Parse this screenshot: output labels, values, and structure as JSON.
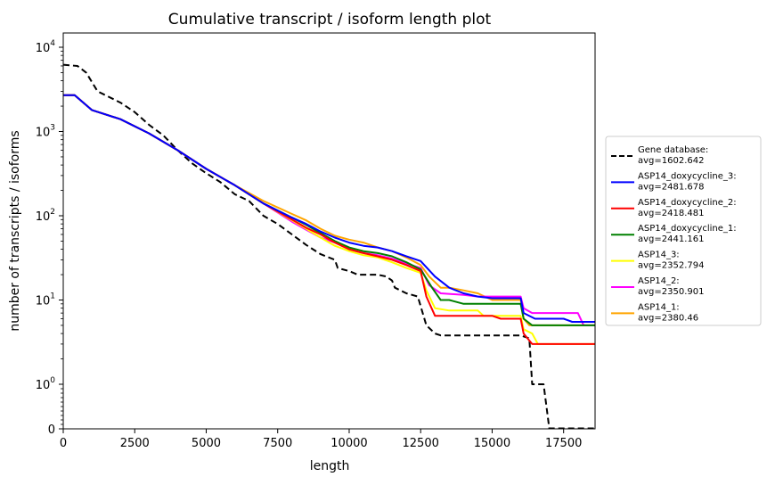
{
  "chart_data": {
    "type": "line",
    "title": "Cumulative transcript / isoform length plot",
    "xlabel": "length",
    "ylabel": "number of transcripts / isoforms",
    "xlim": [
      0,
      18600
    ],
    "yscale": "symlog",
    "ylim": [
      0,
      15000
    ],
    "x_ticks": [
      {
        "value": 0,
        "label": "0"
      },
      {
        "value": 2500,
        "label": "2500"
      },
      {
        "value": 5000,
        "label": "5000"
      },
      {
        "value": 7500,
        "label": "7500"
      },
      {
        "value": 10000,
        "label": "10000"
      },
      {
        "value": 12500,
        "label": "12500"
      },
      {
        "value": 15000,
        "label": "15000"
      },
      {
        "value": 17500,
        "label": "17500"
      }
    ],
    "y_ticks": [
      {
        "value": 0,
        "label": "0"
      },
      {
        "value": 1,
        "base": "10",
        "exp": "0"
      },
      {
        "value": 10,
        "base": "10",
        "exp": "1"
      },
      {
        "value": 100,
        "base": "10",
        "exp": "2"
      },
      {
        "value": 1000,
        "base": "10",
        "exp": "3"
      },
      {
        "value": 10000,
        "base": "10",
        "exp": "4"
      }
    ],
    "legend": {
      "placement": "center-right, outside axes",
      "entries": [
        {
          "line1": "Gene database:",
          "line2": "avg=1602.642",
          "color": "#000000",
          "dashed": true
        },
        {
          "line1": "ASP14_doxycycline_3:",
          "line2": "avg=2481.678",
          "color": "#0000ff",
          "dashed": false
        },
        {
          "line1": "ASP14_doxycycline_2:",
          "line2": "avg=2418.481",
          "color": "#ff0000",
          "dashed": false
        },
        {
          "line1": "ASP14_doxycycline_1:",
          "line2": "avg=2441.161",
          "color": "#008000",
          "dashed": false
        },
        {
          "line1": "ASP14_3:",
          "line2": "avg=2352.794",
          "color": "#ffff00",
          "dashed": false
        },
        {
          "line1": "ASP14_2:",
          "line2": "avg=2350.901",
          "color": "#ff00ff",
          "dashed": false
        },
        {
          "line1": "ASP14_1:",
          "line2": "avg=2380.46",
          "color": "#ffa500",
          "dashed": false
        }
      ]
    },
    "series": [
      {
        "color": "#000000",
        "dashed": true,
        "points": [
          [
            0,
            6200
          ],
          [
            500,
            6000
          ],
          [
            800,
            5000
          ],
          [
            1200,
            3000
          ],
          [
            2000,
            2200
          ],
          [
            2500,
            1700
          ],
          [
            3000,
            1200
          ],
          [
            3500,
            900
          ],
          [
            4000,
            600
          ],
          [
            4500,
            420
          ],
          [
            5000,
            320
          ],
          [
            5500,
            250
          ],
          [
            6000,
            180
          ],
          [
            6500,
            150
          ],
          [
            7000,
            100
          ],
          [
            7500,
            80
          ],
          [
            8000,
            60
          ],
          [
            8500,
            45
          ],
          [
            9000,
            35
          ],
          [
            9500,
            30
          ],
          [
            9600,
            24
          ],
          [
            10000,
            22
          ],
          [
            10300,
            20
          ],
          [
            11000,
            20
          ],
          [
            11300,
            19
          ],
          [
            11500,
            17
          ],
          [
            11600,
            14
          ],
          [
            12000,
            12
          ],
          [
            12400,
            11
          ],
          [
            12700,
            5
          ],
          [
            13000,
            4
          ],
          [
            13200,
            3.8
          ],
          [
            13500,
            3.8
          ],
          [
            16000,
            3.8
          ],
          [
            16300,
            3.5
          ],
          [
            16400,
            1.0
          ],
          [
            16800,
            1.0
          ],
          [
            17000,
            0.01
          ],
          [
            18600,
            0.01
          ]
        ]
      },
      {
        "color": "#0000ff",
        "dashed": false,
        "points": [
          [
            0,
            2700
          ],
          [
            400,
            2700
          ],
          [
            1000,
            1800
          ],
          [
            2000,
            1400
          ],
          [
            3000,
            950
          ],
          [
            4000,
            600
          ],
          [
            5000,
            360
          ],
          [
            6000,
            230
          ],
          [
            7000,
            140
          ],
          [
            8000,
            95
          ],
          [
            8500,
            80
          ],
          [
            9000,
            65
          ],
          [
            9500,
            55
          ],
          [
            10000,
            48
          ],
          [
            10500,
            44
          ],
          [
            11000,
            42
          ],
          [
            11500,
            38
          ],
          [
            12000,
            33
          ],
          [
            12500,
            29
          ],
          [
            13000,
            19
          ],
          [
            13500,
            14
          ],
          [
            14000,
            12
          ],
          [
            14500,
            11
          ],
          [
            15000,
            10.5
          ],
          [
            16000,
            10.5
          ],
          [
            16100,
            7
          ],
          [
            16500,
            6
          ],
          [
            17500,
            6
          ],
          [
            17800,
            5.5
          ],
          [
            18600,
            5.5
          ]
        ]
      },
      {
        "color": "#ff0000",
        "dashed": false,
        "points": [
          [
            0,
            2700
          ],
          [
            400,
            2700
          ],
          [
            1000,
            1800
          ],
          [
            2000,
            1400
          ],
          [
            3000,
            950
          ],
          [
            4000,
            600
          ],
          [
            5000,
            360
          ],
          [
            6000,
            230
          ],
          [
            7000,
            140
          ],
          [
            8000,
            90
          ],
          [
            8500,
            72
          ],
          [
            9000,
            60
          ],
          [
            9500,
            48
          ],
          [
            10000,
            40
          ],
          [
            10500,
            36
          ],
          [
            11000,
            33
          ],
          [
            11500,
            30
          ],
          [
            12000,
            26
          ],
          [
            12500,
            22
          ],
          [
            12700,
            11
          ],
          [
            13000,
            6.5
          ],
          [
            13500,
            6.5
          ],
          [
            15000,
            6.5
          ],
          [
            15300,
            6
          ],
          [
            16000,
            6
          ],
          [
            16100,
            4
          ],
          [
            16400,
            3
          ],
          [
            18600,
            3
          ]
        ]
      },
      {
        "color": "#008000",
        "dashed": false,
        "points": [
          [
            0,
            2700
          ],
          [
            400,
            2700
          ],
          [
            1000,
            1800
          ],
          [
            2000,
            1400
          ],
          [
            3000,
            950
          ],
          [
            4000,
            600
          ],
          [
            5000,
            360
          ],
          [
            6000,
            230
          ],
          [
            7000,
            140
          ],
          [
            8000,
            95
          ],
          [
            8500,
            78
          ],
          [
            9000,
            62
          ],
          [
            9500,
            50
          ],
          [
            10000,
            42
          ],
          [
            10500,
            38
          ],
          [
            11000,
            36
          ],
          [
            11500,
            33
          ],
          [
            12000,
            28
          ],
          [
            12500,
            23
          ],
          [
            12900,
            14
          ],
          [
            13200,
            10
          ],
          [
            13500,
            10
          ],
          [
            14000,
            9
          ],
          [
            16000,
            9
          ],
          [
            16100,
            6
          ],
          [
            16400,
            5
          ],
          [
            18600,
            5
          ]
        ]
      },
      {
        "color": "#ffff00",
        "dashed": false,
        "points": [
          [
            0,
            2700
          ],
          [
            400,
            2700
          ],
          [
            1000,
            1800
          ],
          [
            2000,
            1400
          ],
          [
            3000,
            950
          ],
          [
            4000,
            600
          ],
          [
            5000,
            360
          ],
          [
            6000,
            230
          ],
          [
            7000,
            140
          ],
          [
            8000,
            88
          ],
          [
            8500,
            70
          ],
          [
            9000,
            55
          ],
          [
            9500,
            44
          ],
          [
            10000,
            38
          ],
          [
            10500,
            34
          ],
          [
            11000,
            32
          ],
          [
            11500,
            28
          ],
          [
            12000,
            24
          ],
          [
            12500,
            21
          ],
          [
            12700,
            13
          ],
          [
            13000,
            8
          ],
          [
            13500,
            7.5
          ],
          [
            14500,
            7.5
          ],
          [
            14700,
            6.5
          ],
          [
            16000,
            6.5
          ],
          [
            16100,
            4.5
          ],
          [
            16400,
            4
          ],
          [
            16600,
            3
          ],
          [
            18600,
            3
          ]
        ]
      },
      {
        "color": "#ff00ff",
        "dashed": false,
        "points": [
          [
            0,
            2700
          ],
          [
            400,
            2700
          ],
          [
            1000,
            1800
          ],
          [
            2000,
            1400
          ],
          [
            3000,
            950
          ],
          [
            4000,
            600
          ],
          [
            5000,
            360
          ],
          [
            6000,
            230
          ],
          [
            7000,
            140
          ],
          [
            8000,
            85
          ],
          [
            8500,
            68
          ],
          [
            9000,
            55
          ],
          [
            9500,
            48
          ],
          [
            10000,
            40
          ],
          [
            10500,
            36
          ],
          [
            11000,
            34
          ],
          [
            11500,
            31
          ],
          [
            12000,
            27
          ],
          [
            12500,
            24
          ],
          [
            12800,
            15
          ],
          [
            13200,
            12
          ],
          [
            14000,
            11.5
          ],
          [
            14500,
            11
          ],
          [
            16000,
            11
          ],
          [
            16100,
            8
          ],
          [
            16400,
            7
          ],
          [
            18000,
            7
          ],
          [
            18200,
            5
          ],
          [
            18600,
            5
          ]
        ]
      },
      {
        "color": "#ffa500",
        "dashed": false,
        "points": [
          [
            0,
            2700
          ],
          [
            400,
            2700
          ],
          [
            1000,
            1800
          ],
          [
            2000,
            1400
          ],
          [
            3000,
            950
          ],
          [
            4000,
            600
          ],
          [
            5000,
            360
          ],
          [
            6000,
            230
          ],
          [
            7000,
            150
          ],
          [
            8000,
            105
          ],
          [
            8500,
            88
          ],
          [
            9000,
            70
          ],
          [
            9500,
            58
          ],
          [
            10000,
            52
          ],
          [
            10500,
            48
          ],
          [
            11000,
            42
          ],
          [
            11500,
            38
          ],
          [
            12000,
            32
          ],
          [
            12500,
            26
          ],
          [
            12800,
            19
          ],
          [
            13200,
            14
          ],
          [
            13500,
            14
          ],
          [
            14000,
            13
          ],
          [
            14500,
            12
          ],
          [
            15000,
            10
          ],
          [
            16000,
            10
          ],
          [
            16100,
            6
          ],
          [
            16300,
            5
          ],
          [
            18600,
            5
          ]
        ]
      }
    ]
  }
}
